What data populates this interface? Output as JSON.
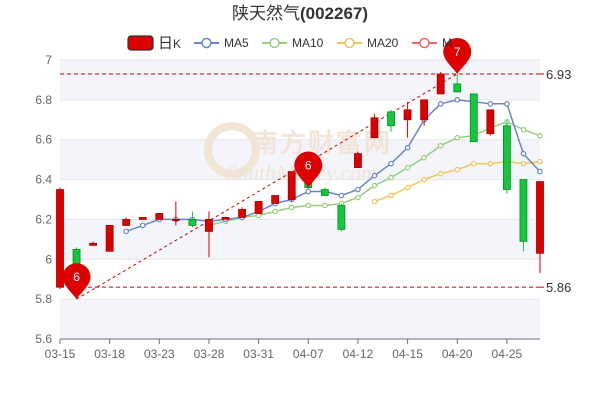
{
  "chart_data": {
    "type": "candlestick",
    "title_cn": "陕天然气",
    "title_code": "(002267)",
    "legend": [
      {
        "key": "k",
        "label_prefix": "日",
        "label_suffix": "K",
        "color": "#dd0000",
        "style": "candle"
      },
      {
        "key": "ma5",
        "label": "MA5",
        "color": "#6a85c6",
        "style": "line"
      },
      {
        "key": "ma10",
        "label": "MA10",
        "color": "#96cf7c",
        "style": "line"
      },
      {
        "key": "ma20",
        "label": "MA20",
        "color": "#f5c35a",
        "style": "line"
      },
      {
        "key": "ma30",
        "label": "M",
        "color": "#ee6666",
        "style": "line"
      }
    ],
    "y_ticks": [
      "5.6",
      "5.8",
      "6",
      "6.2",
      "6.4",
      "6.6",
      "6.8",
      "7"
    ],
    "ylim": [
      5.6,
      7.0
    ],
    "x_tick_labels": [
      {
        "index": 0,
        "label": "03-15"
      },
      {
        "index": 3,
        "label": "03-18"
      },
      {
        "index": 6,
        "label": "03-23"
      },
      {
        "index": 9,
        "label": "03-28"
      },
      {
        "index": 12,
        "label": "03-31"
      },
      {
        "index": 15,
        "label": "04-07"
      },
      {
        "index": 18,
        "label": "04-12"
      },
      {
        "index": 21,
        "label": "04-15"
      },
      {
        "index": 24,
        "label": "04-20"
      },
      {
        "index": 27,
        "label": "04-25"
      }
    ],
    "candles": [
      {
        "open": 5.86,
        "close": 6.35,
        "low": 5.85,
        "high": 6.36
      },
      {
        "open": 6.05,
        "close": 5.86,
        "low": 5.8,
        "high": 6.06
      },
      {
        "open": 6.07,
        "close": 6.08,
        "low": 6.07,
        "high": 6.09
      },
      {
        "open": 6.04,
        "close": 6.17,
        "low": 6.04,
        "high": 6.17
      },
      {
        "open": 6.17,
        "close": 6.2,
        "low": 6.17,
        "high": 6.21
      },
      {
        "open": 6.2,
        "close": 6.21,
        "low": 6.2,
        "high": 6.21
      },
      {
        "open": 6.2,
        "close": 6.23,
        "low": 6.2,
        "high": 6.23
      },
      {
        "open": 6.2,
        "close": 6.2,
        "low": 6.17,
        "high": 6.29
      },
      {
        "open": 6.2,
        "close": 6.17,
        "low": 6.16,
        "high": 6.24
      },
      {
        "open": 6.14,
        "close": 6.2,
        "low": 6.01,
        "high": 6.24
      },
      {
        "open": 6.2,
        "close": 6.21,
        "low": 6.2,
        "high": 6.21
      },
      {
        "open": 6.21,
        "close": 6.25,
        "low": 6.21,
        "high": 6.26
      },
      {
        "open": 6.23,
        "close": 6.29,
        "low": 6.23,
        "high": 6.29
      },
      {
        "open": 6.28,
        "close": 6.32,
        "low": 6.28,
        "high": 6.32
      },
      {
        "open": 6.3,
        "close": 6.44,
        "low": 6.29,
        "high": 6.44
      },
      {
        "open": 6.41,
        "close": 6.36,
        "low": 6.35,
        "high": 6.41
      },
      {
        "open": 6.35,
        "close": 6.32,
        "low": 6.32,
        "high": 6.36
      },
      {
        "open": 6.27,
        "close": 6.15,
        "low": 6.14,
        "high": 6.28
      },
      {
        "open": 6.46,
        "close": 6.53,
        "low": 6.46,
        "high": 6.54
      },
      {
        "open": 6.61,
        "close": 6.71,
        "low": 6.61,
        "high": 6.73
      },
      {
        "open": 6.74,
        "close": 6.67,
        "low": 6.64,
        "high": 6.75
      },
      {
        "open": 6.7,
        "close": 6.75,
        "low": 6.61,
        "high": 6.79
      },
      {
        "open": 6.7,
        "close": 6.8,
        "low": 6.67,
        "high": 6.8
      },
      {
        "open": 6.83,
        "close": 6.93,
        "low": 6.83,
        "high": 6.94
      },
      {
        "open": 6.88,
        "close": 6.84,
        "low": 6.84,
        "high": 6.93
      },
      {
        "open": 6.83,
        "close": 6.59,
        "low": 6.59,
        "high": 6.83
      },
      {
        "open": 6.63,
        "close": 6.75,
        "low": 6.62,
        "high": 6.75
      },
      {
        "open": 6.67,
        "close": 6.35,
        "low": 6.33,
        "high": 6.7
      },
      {
        "open": 6.4,
        "close": 6.09,
        "low": 6.04,
        "high": 6.4
      },
      {
        "open": 6.03,
        "close": 6.39,
        "low": 5.93,
        "high": 6.39
      }
    ],
    "ma5": [
      null,
      null,
      null,
      null,
      6.14,
      6.17,
      6.2,
      6.2,
      6.2,
      6.19,
      6.2,
      6.21,
      6.24,
      6.28,
      6.3,
      6.34,
      6.34,
      6.32,
      6.35,
      6.42,
      6.48,
      6.56,
      6.7,
      6.78,
      6.8,
      6.79,
      6.78,
      6.78,
      6.53,
      6.44
    ],
    "ma10": [
      null,
      null,
      null,
      null,
      null,
      null,
      null,
      null,
      null,
      6.17,
      6.19,
      6.21,
      6.22,
      6.24,
      6.26,
      6.27,
      6.27,
      6.28,
      6.31,
      6.37,
      6.41,
      6.46,
      6.51,
      6.57,
      6.61,
      6.62,
      6.66,
      6.69,
      6.65,
      6.62
    ],
    "ma20": [
      null,
      null,
      null,
      null,
      null,
      null,
      null,
      null,
      null,
      null,
      null,
      null,
      null,
      null,
      null,
      null,
      null,
      null,
      null,
      6.29,
      6.32,
      6.36,
      6.4,
      6.43,
      6.45,
      6.48,
      6.48,
      6.49,
      6.48,
      6.49
    ],
    "ref_lines": [
      {
        "value": 6.93,
        "label": "6.93"
      },
      {
        "value": 5.86,
        "label": "5.86"
      }
    ],
    "markers": [
      {
        "index": 1,
        "value": 5.8,
        "label": "6"
      },
      {
        "index": 15,
        "value": 6.36,
        "label": "6"
      },
      {
        "index": 24,
        "value": 6.93,
        "label": "7"
      }
    ],
    "trend_line": {
      "from_index": 1,
      "from_value": 5.8,
      "to_index": 24,
      "to_value": 6.93
    },
    "colors": {
      "up": "#dd0000",
      "down": "#14c83c",
      "ref_line": "#cc0000",
      "marker": "#dd0000",
      "grid": "#e6e6e6",
      "band": "#f3f5fa"
    }
  },
  "watermark": {
    "cn": "南方财富网",
    "en": "SouthMoney.com"
  }
}
